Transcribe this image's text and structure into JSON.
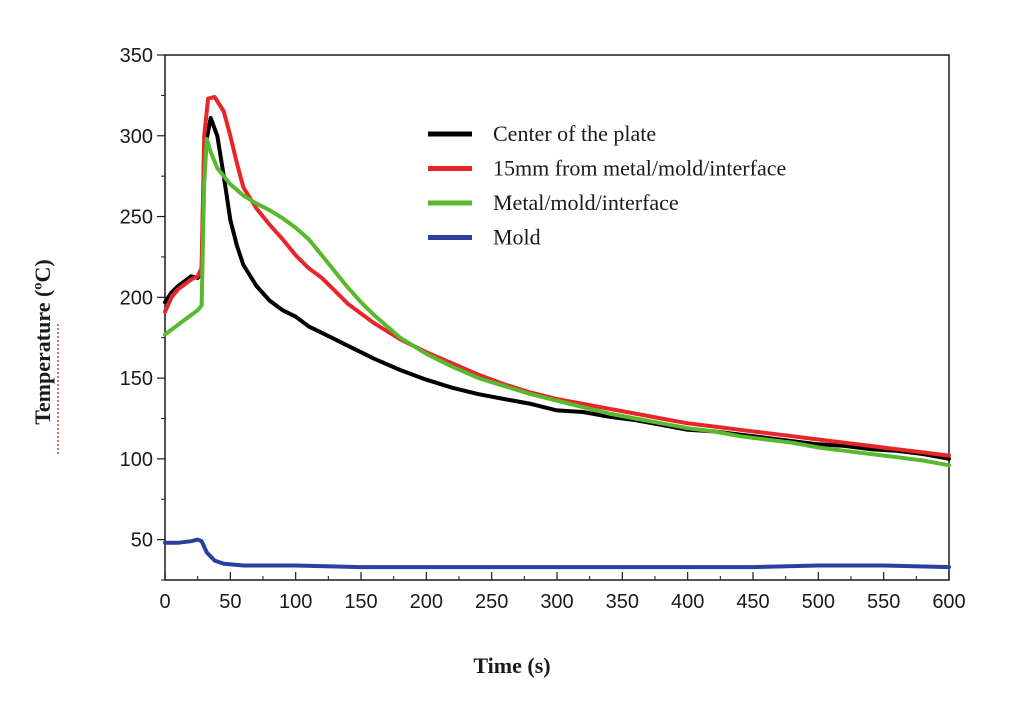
{
  "chart_data": {
    "type": "line",
    "title": "",
    "xlabel": "Time (s)",
    "ylabel": "Temperature (ºC)",
    "xlim": [
      0,
      600
    ],
    "ylim": [
      25,
      350
    ],
    "xticks": [
      0,
      50,
      100,
      150,
      200,
      250,
      300,
      350,
      400,
      450,
      500,
      550,
      600
    ],
    "yticks": [
      50,
      100,
      150,
      200,
      250,
      300,
      350
    ],
    "grid": false,
    "legend_position": "top-right",
    "series": [
      {
        "name": "Center of the plate",
        "color": "#000000",
        "points": [
          [
            0,
            197
          ],
          [
            5,
            203
          ],
          [
            10,
            207
          ],
          [
            15,
            210
          ],
          [
            20,
            213
          ],
          [
            25,
            212
          ],
          [
            28,
            215
          ],
          [
            30,
            290
          ],
          [
            35,
            311
          ],
          [
            40,
            300
          ],
          [
            45,
            275
          ],
          [
            50,
            248
          ],
          [
            55,
            232
          ],
          [
            60,
            220
          ],
          [
            70,
            207
          ],
          [
            80,
            198
          ],
          [
            90,
            192
          ],
          [
            100,
            188
          ],
          [
            110,
            182
          ],
          [
            120,
            178
          ],
          [
            130,
            174
          ],
          [
            140,
            170
          ],
          [
            150,
            166
          ],
          [
            160,
            162
          ],
          [
            180,
            155
          ],
          [
            200,
            149
          ],
          [
            220,
            144
          ],
          [
            240,
            140
          ],
          [
            260,
            137
          ],
          [
            280,
            134
          ],
          [
            300,
            130
          ],
          [
            320,
            129
          ],
          [
            340,
            126
          ],
          [
            360,
            124
          ],
          [
            380,
            121
          ],
          [
            400,
            118
          ],
          [
            420,
            117
          ],
          [
            440,
            115
          ],
          [
            460,
            113
          ],
          [
            480,
            111
          ],
          [
            500,
            109
          ],
          [
            520,
            108
          ],
          [
            540,
            106
          ],
          [
            560,
            105
          ],
          [
            580,
            103
          ],
          [
            600,
            100
          ]
        ]
      },
      {
        "name": "15mm from metal/mold/interface",
        "color": "#e8262a",
        "points": [
          [
            0,
            191
          ],
          [
            5,
            200
          ],
          [
            10,
            205
          ],
          [
            15,
            208
          ],
          [
            20,
            211
          ],
          [
            25,
            213
          ],
          [
            28,
            218
          ],
          [
            30,
            300
          ],
          [
            33,
            323
          ],
          [
            38,
            324
          ],
          [
            45,
            315
          ],
          [
            50,
            300
          ],
          [
            55,
            283
          ],
          [
            60,
            268
          ],
          [
            70,
            255
          ],
          [
            80,
            245
          ],
          [
            90,
            236
          ],
          [
            100,
            226
          ],
          [
            110,
            218
          ],
          [
            120,
            212
          ],
          [
            130,
            204
          ],
          [
            140,
            196
          ],
          [
            150,
            190
          ],
          [
            160,
            184
          ],
          [
            180,
            174
          ],
          [
            200,
            166
          ],
          [
            220,
            159
          ],
          [
            240,
            152
          ],
          [
            260,
            146
          ],
          [
            280,
            141
          ],
          [
            300,
            137
          ],
          [
            320,
            134
          ],
          [
            340,
            131
          ],
          [
            360,
            128
          ],
          [
            380,
            125
          ],
          [
            400,
            122
          ],
          [
            420,
            120
          ],
          [
            440,
            118
          ],
          [
            460,
            116
          ],
          [
            480,
            114
          ],
          [
            500,
            112
          ],
          [
            520,
            110
          ],
          [
            540,
            108
          ],
          [
            560,
            106
          ],
          [
            580,
            104
          ],
          [
            600,
            102
          ]
        ]
      },
      {
        "name": "Metal/mold/interface",
        "color": "#58b92e",
        "points": [
          [
            0,
            177
          ],
          [
            5,
            180
          ],
          [
            10,
            183
          ],
          [
            15,
            186
          ],
          [
            20,
            189
          ],
          [
            25,
            192
          ],
          [
            28,
            195
          ],
          [
            30,
            270
          ],
          [
            32,
            298
          ],
          [
            35,
            290
          ],
          [
            40,
            280
          ],
          [
            45,
            275
          ],
          [
            50,
            270
          ],
          [
            60,
            263
          ],
          [
            70,
            258
          ],
          [
            80,
            254
          ],
          [
            90,
            249
          ],
          [
            100,
            243
          ],
          [
            110,
            236
          ],
          [
            120,
            226
          ],
          [
            130,
            216
          ],
          [
            140,
            206
          ],
          [
            150,
            197
          ],
          [
            160,
            189
          ],
          [
            180,
            175
          ],
          [
            200,
            165
          ],
          [
            220,
            157
          ],
          [
            240,
            150
          ],
          [
            260,
            145
          ],
          [
            280,
            140
          ],
          [
            300,
            136
          ],
          [
            320,
            132
          ],
          [
            340,
            128
          ],
          [
            360,
            125
          ],
          [
            380,
            122
          ],
          [
            400,
            119
          ],
          [
            420,
            117
          ],
          [
            440,
            114
          ],
          [
            460,
            112
          ],
          [
            480,
            110
          ],
          [
            500,
            107
          ],
          [
            520,
            105
          ],
          [
            540,
            103
          ],
          [
            560,
            101
          ],
          [
            580,
            99
          ],
          [
            600,
            96
          ]
        ]
      },
      {
        "name": "Mold",
        "color": "#2b3f9e",
        "points": [
          [
            0,
            48
          ],
          [
            10,
            48
          ],
          [
            20,
            49
          ],
          [
            25,
            50
          ],
          [
            28,
            49
          ],
          [
            32,
            42
          ],
          [
            38,
            37
          ],
          [
            45,
            35
          ],
          [
            60,
            34
          ],
          [
            100,
            34
          ],
          [
            150,
            33
          ],
          [
            200,
            33
          ],
          [
            250,
            33
          ],
          [
            300,
            33
          ],
          [
            350,
            33
          ],
          [
            400,
            33
          ],
          [
            450,
            33
          ],
          [
            500,
            34
          ],
          [
            550,
            34
          ],
          [
            600,
            33
          ]
        ]
      }
    ]
  }
}
